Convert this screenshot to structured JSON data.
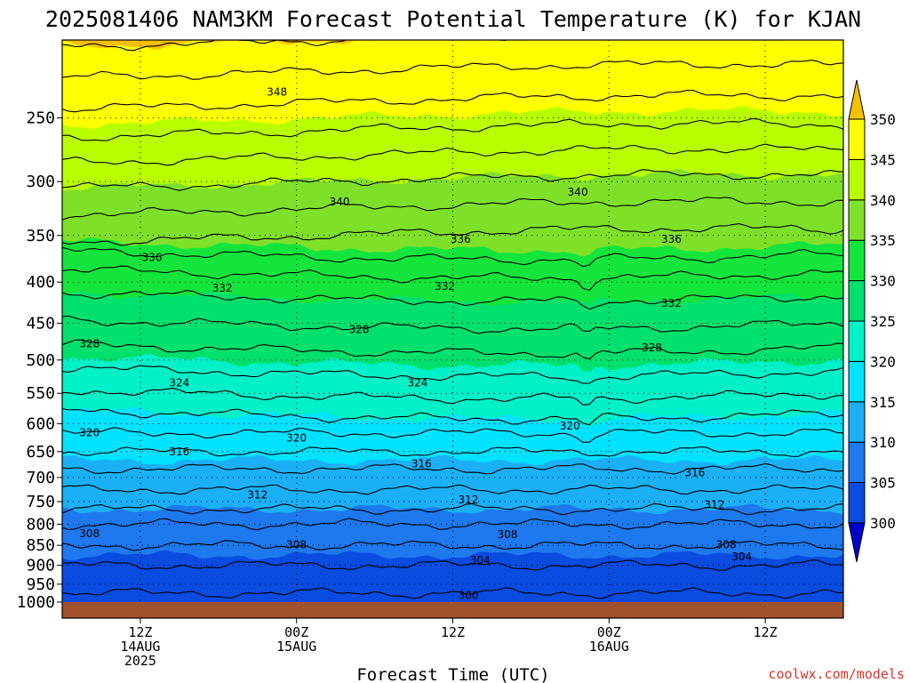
{
  "title": "2025081406 NAM3KM Forecast Potential Temperature (K) for KJAN",
  "credit": "coolwx.com/models",
  "chart_data": {
    "type": "contour",
    "title": "2025081406 NAM3KM Forecast Potential Temperature (K) for KJAN",
    "xlabel": "Forecast Time (UTC)",
    "ylabel": "",
    "x_range_hours": [
      0,
      60
    ],
    "y_range_hPa": [
      200,
      1000
    ],
    "y_scale": "log-pressure (top = low pressure)",
    "grid": "dotted",
    "y_ticks": [
      250,
      300,
      350,
      400,
      450,
      500,
      550,
      600,
      650,
      700,
      750,
      800,
      850,
      900,
      950,
      1000
    ],
    "x_ticks": [
      {
        "hour": 6,
        "line1": "12Z",
        "line2": "14AUG",
        "line3": "2025"
      },
      {
        "hour": 18,
        "line1": "00Z",
        "line2": "15AUG",
        "line3": ""
      },
      {
        "hour": 30,
        "line1": "12Z",
        "line2": "",
        "line3": ""
      },
      {
        "hour": 42,
        "line1": "00Z",
        "line2": "16AUG",
        "line3": ""
      },
      {
        "hour": 54,
        "line1": "12Z",
        "line2": "",
        "line3": ""
      }
    ],
    "colorbar": {
      "levels": [
        300,
        305,
        310,
        315,
        320,
        325,
        330,
        335,
        340,
        345,
        350
      ],
      "colors": [
        "#0000cc",
        "#0a4be0",
        "#1e78ee",
        "#1bb0f5",
        "#00e2ff",
        "#00f0c8",
        "#00e06c",
        "#14e53c",
        "#7fe02a",
        "#b8ff00",
        "#ffff00",
        "#f5c000"
      ],
      "extend": "both"
    },
    "ground_color": "#a0522d",
    "series": [
      {
        "kind": "theta_vs_pressure",
        "x_hour": 30,
        "points": [
          [
            1000,
            301
          ],
          [
            950,
            303
          ],
          [
            900,
            304
          ],
          [
            850,
            306
          ],
          [
            800,
            308
          ],
          [
            750,
            311
          ],
          [
            700,
            313
          ],
          [
            650,
            316
          ],
          [
            600,
            319
          ],
          [
            550,
            322
          ],
          [
            500,
            325
          ],
          [
            450,
            328
          ],
          [
            400,
            331
          ],
          [
            350,
            336
          ],
          [
            300,
            340
          ],
          [
            250,
            345
          ],
          [
            200,
            350
          ]
        ]
      }
    ],
    "contour_labels": [
      {
        "value": "348",
        "hour": 16.5,
        "p": 232
      },
      {
        "value": "340",
        "hour": 21.3,
        "p": 318
      },
      {
        "value": "340",
        "hour": 39.6,
        "p": 309
      },
      {
        "value": "336",
        "hour": 6.9,
        "p": 373
      },
      {
        "value": "336",
        "hour": 30.6,
        "p": 354
      },
      {
        "value": "336",
        "hour": 46.8,
        "p": 354
      },
      {
        "value": "332",
        "hour": 12.3,
        "p": 407
      },
      {
        "value": "332",
        "hour": 29.4,
        "p": 405
      },
      {
        "value": "332",
        "hour": 46.8,
        "p": 425
      },
      {
        "value": "328",
        "hour": 2.1,
        "p": 477
      },
      {
        "value": "328",
        "hour": 22.8,
        "p": 458
      },
      {
        "value": "328",
        "hour": 45.3,
        "p": 483
      },
      {
        "value": "324",
        "hour": 9.0,
        "p": 534
      },
      {
        "value": "324",
        "hour": 27.3,
        "p": 534
      },
      {
        "value": "320",
        "hour": 2.1,
        "p": 616
      },
      {
        "value": "320",
        "hour": 18.0,
        "p": 625
      },
      {
        "value": "320",
        "hour": 39.0,
        "p": 604
      },
      {
        "value": "316",
        "hour": 9.0,
        "p": 650
      },
      {
        "value": "316",
        "hour": 27.6,
        "p": 673
      },
      {
        "value": "316",
        "hour": 48.6,
        "p": 690
      },
      {
        "value": "312",
        "hour": 15.0,
        "p": 736
      },
      {
        "value": "312",
        "hour": 31.2,
        "p": 746
      },
      {
        "value": "312",
        "hour": 50.1,
        "p": 757
      },
      {
        "value": "308",
        "hour": 2.1,
        "p": 822
      },
      {
        "value": "308",
        "hour": 18.0,
        "p": 849
      },
      {
        "value": "308",
        "hour": 34.2,
        "p": 824
      },
      {
        "value": "308",
        "hour": 51.0,
        "p": 849
      },
      {
        "value": "304",
        "hour": 32.1,
        "p": 887
      },
      {
        "value": "304",
        "hour": 52.2,
        "p": 878
      },
      {
        "value": "300",
        "hour": 31.2,
        "p": 981
      }
    ]
  }
}
